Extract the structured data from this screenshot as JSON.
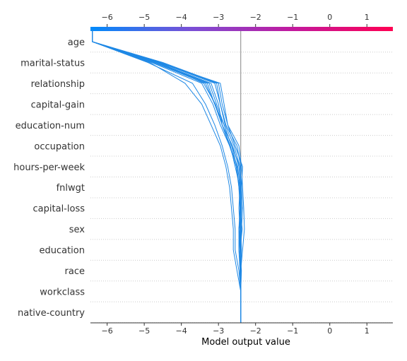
{
  "chart_data": {
    "type": "line",
    "subtype": "shap-decision-plot",
    "xlabel": "Model output value",
    "xlim": [
      -6.45,
      1.7
    ],
    "xticks": [
      -6,
      -5,
      -4,
      -3,
      -2,
      -1,
      0,
      1
    ],
    "base_value": -2.4,
    "features": [
      "native-country",
      "workclass",
      "race",
      "education",
      "sex",
      "capital-loss",
      "fnlwgt",
      "hours-per-week",
      "occupation",
      "education-num",
      "capital-gain",
      "relationship",
      "marital-status",
      "age"
    ],
    "colorbar": {
      "colors": [
        "#008bfb",
        "#7a4fd6",
        "#c2199e",
        "#ff0052"
      ],
      "range": [
        -6.45,
        1.7
      ]
    },
    "line_color": "#1e88e5",
    "series": [
      {
        "values": [
          -2.4,
          -2.4,
          -2.4,
          -2.42,
          -2.36,
          -2.42,
          -2.43,
          -2.4,
          -2.5,
          -2.8,
          -2.95,
          -3.1,
          -4.6,
          -6.4
        ]
      },
      {
        "values": [
          -2.4,
          -2.4,
          -2.42,
          -2.4,
          -2.38,
          -2.35,
          -2.38,
          -2.35,
          -2.55,
          -2.75,
          -2.9,
          -3.0,
          -4.5,
          -6.4
        ]
      },
      {
        "values": [
          -2.4,
          -2.4,
          -2.38,
          -2.42,
          -2.45,
          -2.4,
          -2.45,
          -2.5,
          -2.65,
          -2.85,
          -3.1,
          -3.3,
          -4.7,
          -6.4
        ]
      },
      {
        "values": [
          -2.4,
          -2.4,
          -2.4,
          -2.38,
          -2.4,
          -2.38,
          -2.42,
          -2.48,
          -2.7,
          -2.95,
          -3.15,
          -3.45,
          -4.8,
          -6.4
        ]
      },
      {
        "values": [
          -2.4,
          -2.4,
          -2.4,
          -2.45,
          -2.45,
          -2.38,
          -2.4,
          -2.45,
          -2.62,
          -2.9,
          -3.0,
          -3.2,
          -4.65,
          -6.4
        ]
      },
      {
        "values": [
          -2.4,
          -2.4,
          -2.42,
          -2.45,
          -2.42,
          -2.4,
          -2.38,
          -2.42,
          -2.58,
          -2.82,
          -2.95,
          -3.05,
          -4.55,
          -6.4
        ]
      },
      {
        "values": [
          -2.4,
          -2.4,
          -2.4,
          -2.35,
          -2.3,
          -2.32,
          -2.35,
          -2.38,
          -2.45,
          -2.75,
          -2.85,
          -2.95,
          -4.6,
          -6.4
        ]
      },
      {
        "values": [
          -2.4,
          -2.4,
          -2.45,
          -2.55,
          -2.55,
          -2.6,
          -2.65,
          -2.75,
          -2.9,
          -3.1,
          -3.35,
          -3.7,
          -4.9,
          -6.4
        ]
      },
      {
        "values": [
          -2.4,
          -2.4,
          -2.5,
          -2.6,
          -2.6,
          -2.65,
          -2.7,
          -2.8,
          -2.95,
          -3.2,
          -3.45,
          -3.9,
          -4.85,
          -6.4
        ]
      },
      {
        "values": [
          -2.4,
          -2.4,
          -2.4,
          -2.42,
          -2.4,
          -2.42,
          -2.4,
          -2.42,
          -2.65,
          -2.85,
          -3.05,
          -3.25,
          -4.7,
          -6.4
        ]
      },
      {
        "values": [
          -2.4,
          -2.4,
          -2.4,
          -2.4,
          -2.45,
          -2.42,
          -2.45,
          -2.52,
          -2.7,
          -2.9,
          -3.1,
          -3.35,
          -4.75,
          -6.4
        ]
      },
      {
        "values": [
          -2.4,
          -2.4,
          -2.42,
          -2.4,
          -2.42,
          -2.45,
          -2.42,
          -2.55,
          -2.68,
          -2.9,
          -3.08,
          -3.4,
          -4.6,
          -6.4
        ]
      }
    ]
  }
}
